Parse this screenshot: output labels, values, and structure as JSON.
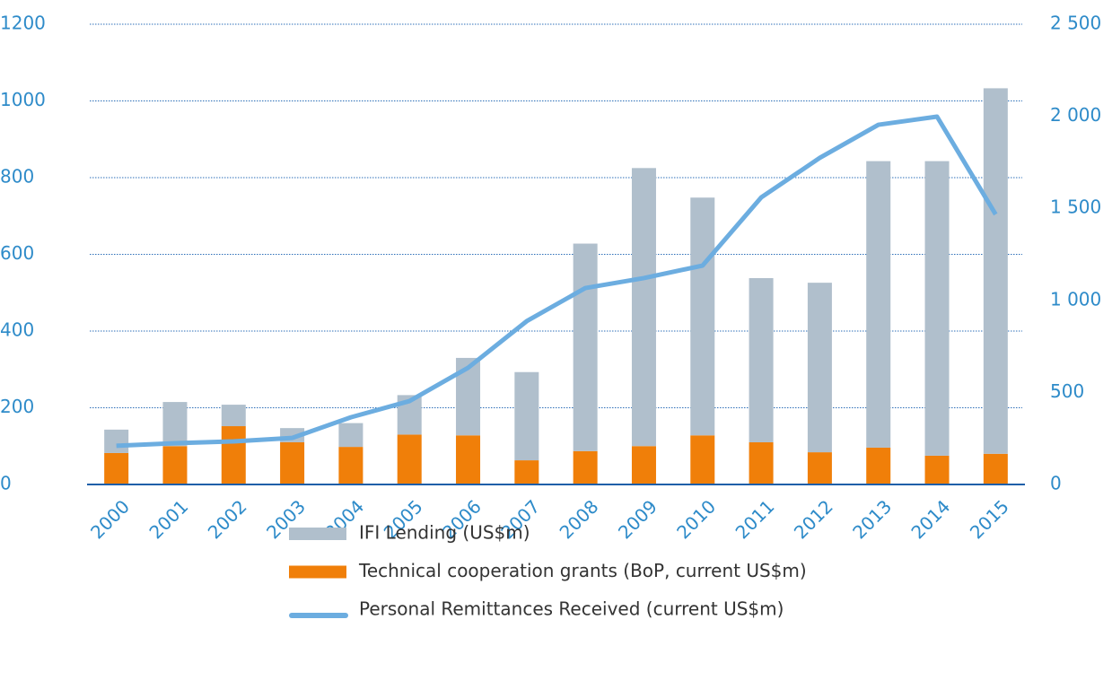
{
  "chart_data": {
    "type": "bar",
    "categories": [
      "2000",
      "2001",
      "2002",
      "2003",
      "2004",
      "2005",
      "2006",
      "2007",
      "2008",
      "2009",
      "2010",
      "2011",
      "2012",
      "2013",
      "2014",
      "2015"
    ],
    "series": [
      {
        "name": "IFI Lending (US$m)",
        "color": "#b0bfcc",
        "values": [
          61,
          115,
          56,
          37,
          62,
          103,
          202,
          230,
          541,
          725,
          620,
          428,
          442,
          747,
          768,
          953
        ]
      },
      {
        "name": "Technical cooperation grants (BoP, current US$m)",
        "color": "#f07f09",
        "values": [
          82,
          100,
          152,
          110,
          98,
          130,
          128,
          63,
          87,
          100,
          128,
          110,
          84,
          96,
          75,
          80
        ]
      },
      {
        "name": "Personal Remittances Received (current US$m)",
        "color": "#6cade0",
        "type": "line",
        "axis": "y2",
        "values": [
          210,
          224,
          234,
          253,
          365,
          453,
          634,
          887,
          1067,
          1121,
          1189,
          1559,
          1774,
          1954,
          1998,
          1467
        ]
      }
    ],
    "ylim": [
      0,
      1200
    ],
    "yticks": [
      0,
      200,
      400,
      600,
      800,
      1000,
      1200
    ],
    "y2lim": [
      0,
      2500
    ],
    "y2ticks": [
      0,
      500,
      {
        "value": 1000,
        "label": "1 000"
      },
      {
        "value": 1500,
        "label": "1 500"
      },
      {
        "value": 2000,
        "label": "2 000"
      },
      {
        "value": 2500,
        "label": "2 500"
      }
    ],
    "grid": true
  }
}
